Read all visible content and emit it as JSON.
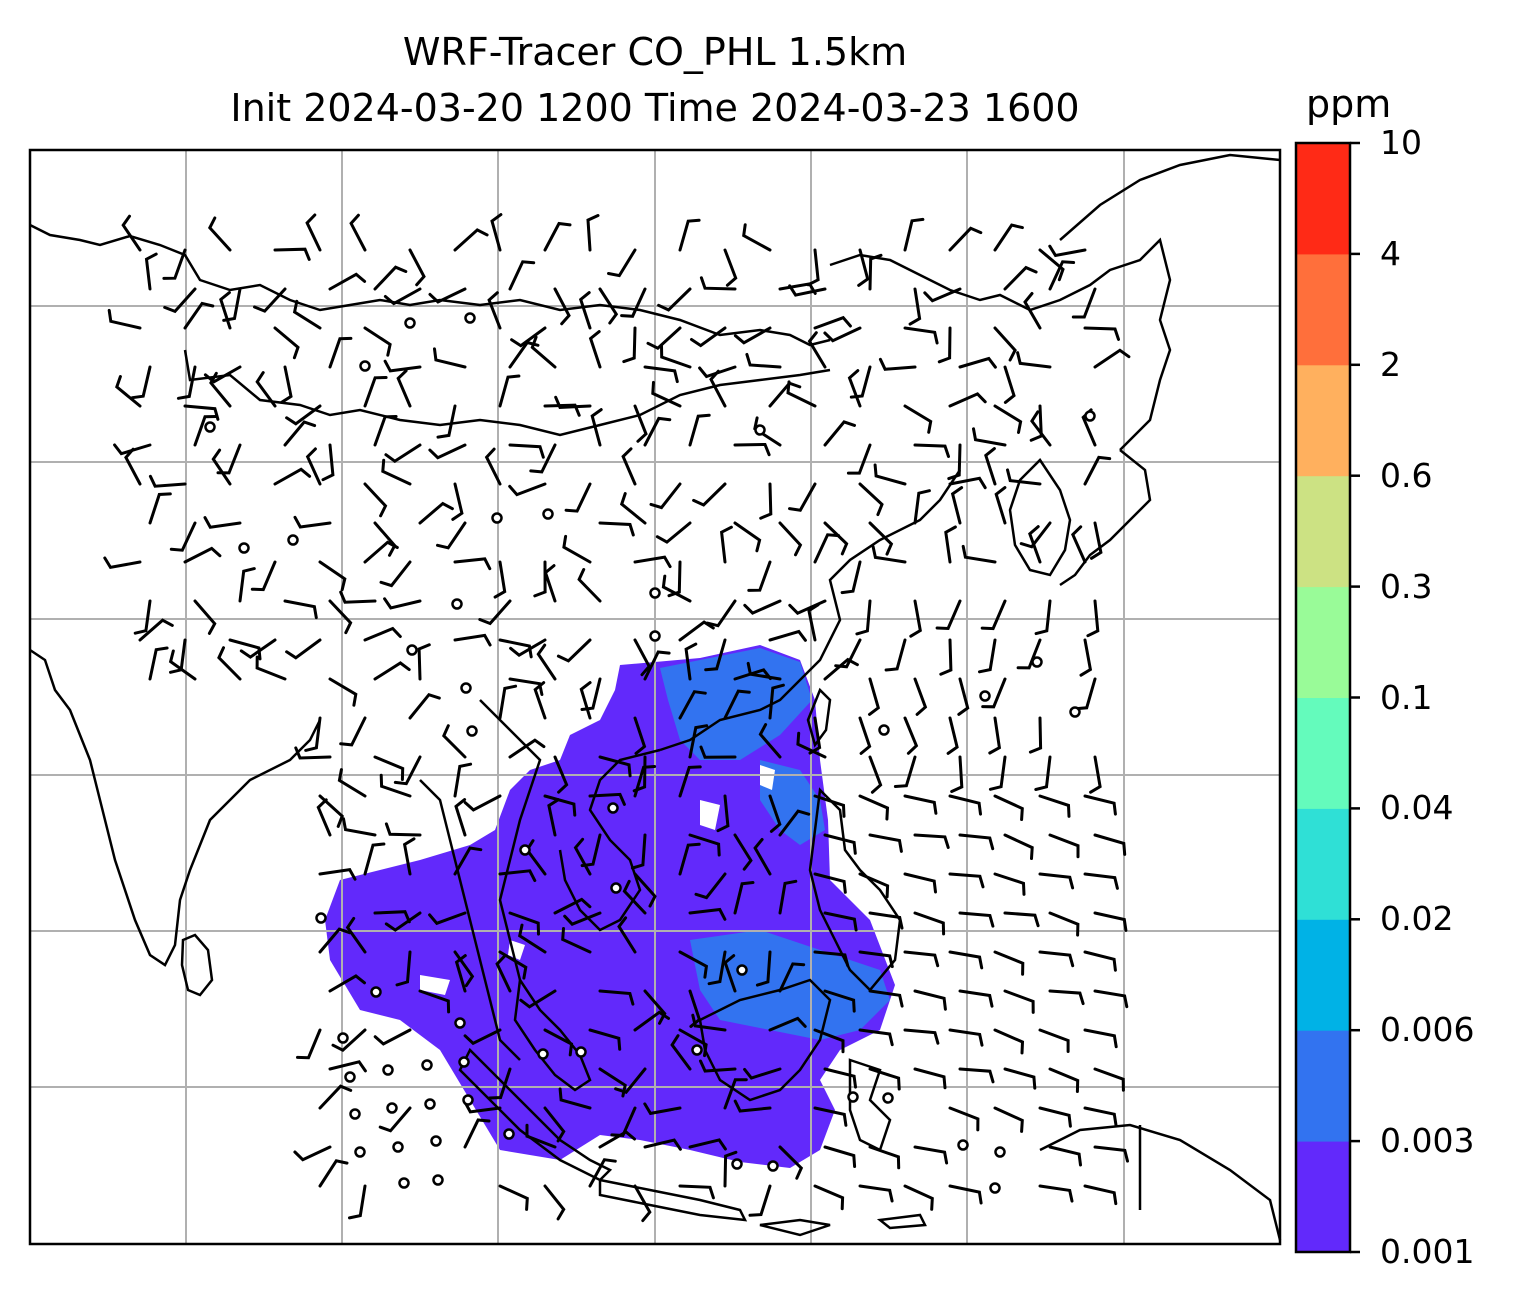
{
  "title": {
    "line1": "WRF-Tracer CO_PHL 1.5km",
    "line2": "Init 2024-03-20 1200 Time 2024-03-23 1600"
  },
  "colorbar": {
    "unit": "ppm",
    "levels": [
      "0.001",
      "0.003",
      "0.006",
      "0.02",
      "0.04",
      "0.1",
      "0.3",
      "0.6",
      "2",
      "4",
      "10"
    ],
    "colors": [
      "#6229fb",
      "#3273f0",
      "#00b2e6",
      "#2fe0d6",
      "#64fbbc",
      "#99fb98",
      "#cce283",
      "#ffb05e",
      "#ff6f3b",
      "#ff2a16"
    ]
  },
  "colors": {
    "coastline": "#000000",
    "gridline": "#b0b0b0",
    "plume_main": "#6229fb",
    "plume_edge": "#3273f0"
  }
}
